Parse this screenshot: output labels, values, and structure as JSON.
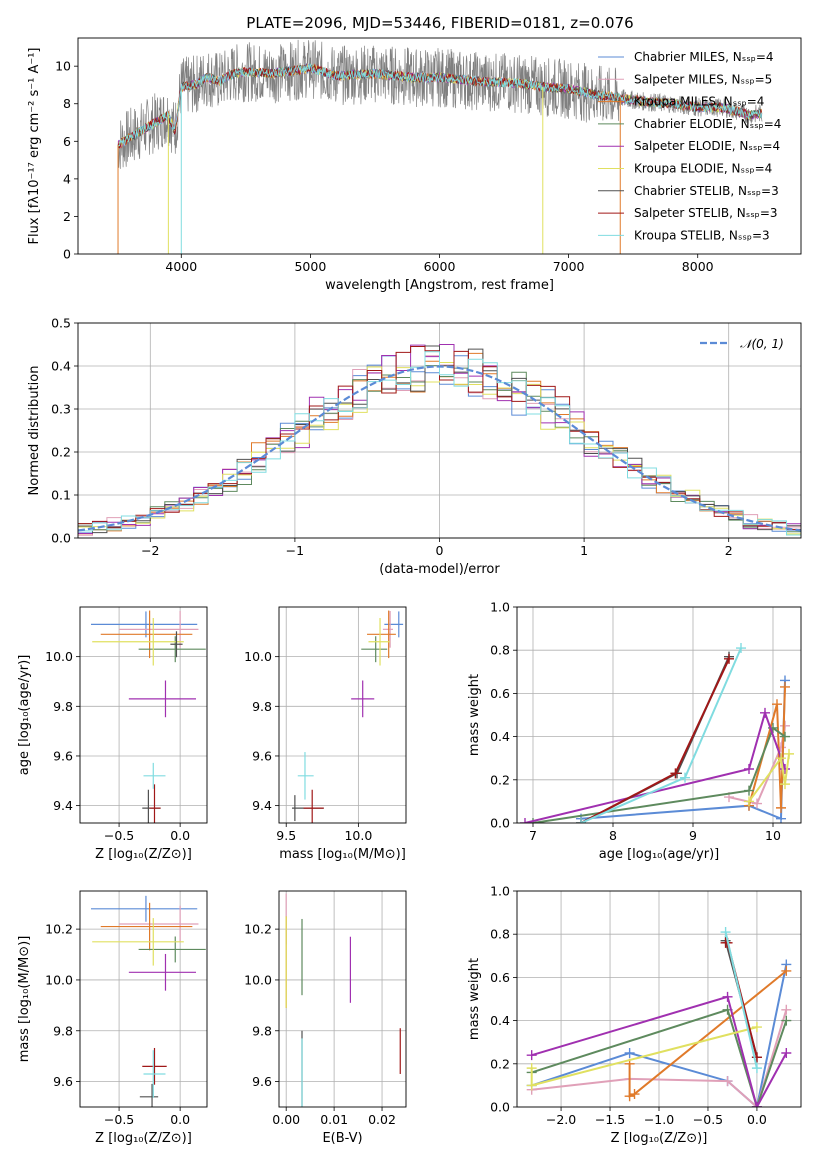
{
  "chart_data": [
    {
      "id": "spectrum",
      "type": "line",
      "title": "PLATE=2096, MJD=53446, FIBERID=0181, z=0.076",
      "xlabel": "wavelength [Angstrom, rest frame]",
      "ylabel": "Flux [fλ10⁻¹⁷ erg cm⁻² s⁻¹ A⁻¹]",
      "xlim": [
        3200,
        8800
      ],
      "ylim": [
        0,
        11.5
      ],
      "xticks": [
        4000,
        5000,
        6000,
        7000,
        8000
      ],
      "yticks": [
        0,
        2,
        4,
        6,
        8,
        10
      ],
      "legend_position": "top-right",
      "continuum": {
        "x": [
          3510,
          3600,
          3700,
          3800,
          3900,
          3950,
          4000,
          4100,
          4200,
          4300,
          4400,
          4500,
          4700,
          5000,
          5200,
          5500,
          5800,
          6000,
          6300,
          6600,
          6800,
          7000,
          7200,
          7400,
          7600,
          7800,
          8000,
          8200,
          8400,
          8500
        ],
        "y": [
          5.8,
          6.2,
          6.6,
          7.0,
          7.4,
          6.5,
          8.9,
          9.0,
          9.4,
          9.2,
          9.6,
          9.7,
          9.6,
          9.9,
          9.5,
          9.6,
          9.4,
          9.4,
          9.2,
          9.1,
          8.9,
          8.8,
          8.5,
          8.3,
          8.1,
          8.0,
          7.8,
          7.8,
          7.4,
          7.5
        ]
      },
      "series": [
        {
          "name": "Chabrier MILES, Nₛₛₚ=4",
          "color": "#5b8bd6"
        },
        {
          "name": "Salpeter MILES, Nₛₛₚ=5",
          "color": "#e0a0b8"
        },
        {
          "name": "Kroupa MILES, Nₛₛₚ=4",
          "color": "#e07a2a"
        },
        {
          "name": "Chabrier ELODIE, Nₛₛₚ=4",
          "color": "#5e8a5e"
        },
        {
          "name": "Salpeter ELODIE, Nₛₛₚ=4",
          "color": "#a030b0"
        },
        {
          "name": "Kroupa ELODIE, Nₛₛₚ=4",
          "color": "#e0e060"
        },
        {
          "name": "Chabrier STELIB, Nₛₛₚ=3",
          "color": "#505050"
        },
        {
          "name": "Salpeter STELIB, Nₛₛₚ=3",
          "color": "#a01818"
        },
        {
          "name": "Kroupa STELIB, Nₛₛₚ=3",
          "color": "#80dce0"
        }
      ]
    },
    {
      "id": "residuals",
      "type": "histogram",
      "xlabel": "(data-model)/error",
      "ylabel": "Normed distribution",
      "xlim": [
        -2.5,
        2.5
      ],
      "ylim": [
        0,
        0.5
      ],
      "xticks": [
        -2,
        -1,
        0,
        1,
        2
      ],
      "yticks": [
        0.0,
        0.1,
        0.2,
        0.3,
        0.4,
        0.5
      ],
      "legend": "𝒩(0, 1)",
      "legend_position": "top-right",
      "gaussian_color": "#5b8bd6",
      "bin_width": 0.1,
      "bin_start": -2.5
    },
    {
      "id": "age_vs_Z",
      "type": "errorbar",
      "xlabel": "Z [log₁₀(Z/Z⊙)]",
      "ylabel": "age  [log₁₀(age/yr)]",
      "xlim": [
        -0.82,
        0.22
      ],
      "ylim": [
        9.33,
        10.2
      ],
      "xticks": [
        -0.5,
        0.0
      ],
      "yticks": [
        9.4,
        9.6,
        9.8,
        10.0
      ],
      "points": [
        {
          "x": -0.28,
          "xe": [
            0.45,
            0.42
          ],
          "y": 10.13,
          "color": "#5b8bd6"
        },
        {
          "x": 0.0,
          "xe": [
            0.5,
            0.15
          ],
          "y": 10.11,
          "color": "#e0a0b8"
        },
        {
          "x": -0.25,
          "xe": [
            0.4,
            0.35
          ],
          "y": 10.09,
          "color": "#e07a2a"
        },
        {
          "x": -0.04,
          "xe": [
            0.3,
            0.25
          ],
          "y": 10.03,
          "color": "#5e8a5e"
        },
        {
          "x": -0.12,
          "xe": [
            0.3,
            0.25
          ],
          "y": 9.83,
          "color": "#a030b0"
        },
        {
          "x": -0.22,
          "xe": [
            0.5,
            0.25
          ],
          "y": 10.06,
          "color": "#e0e060"
        },
        {
          "x": -0.03,
          "xe": [
            0.05,
            0.05
          ],
          "y": 10.05,
          "color": "#505050"
        },
        {
          "x": -0.26,
          "xe": [
            0.05,
            0.1
          ],
          "y": 9.39,
          "color": "#505050"
        },
        {
          "x": -0.21,
          "xe": [
            0.04,
            0.05
          ],
          "y": 9.39,
          "color": "#a01818"
        },
        {
          "x": -0.22,
          "xe": [
            0.08,
            0.1
          ],
          "y": 9.52,
          "color": "#80dce0"
        }
      ]
    },
    {
      "id": "age_vs_mass",
      "type": "errorbar",
      "xlabel": "mass [log₁₀(M/M⊙)]",
      "ylabel": "",
      "xlim": [
        9.45,
        10.33
      ],
      "ylim": [
        9.33,
        10.2
      ],
      "xticks": [
        9.5,
        10.0
      ],
      "yticks": [
        9.4,
        9.6,
        9.8,
        10.0
      ],
      "points": [
        {
          "x": 10.28,
          "xe": [
            0.1,
            0.03
          ],
          "y": 10.13,
          "color": "#5b8bd6"
        },
        {
          "x": 10.22,
          "xe": [
            0.05,
            0.02
          ],
          "y": 10.11,
          "color": "#e0a0b8"
        },
        {
          "x": 10.21,
          "xe": [
            0.15,
            0.05
          ],
          "y": 10.09,
          "color": "#e07a2a"
        },
        {
          "x": 10.12,
          "xe": [
            0.1,
            0.08
          ],
          "y": 10.03,
          "color": "#5e8a5e"
        },
        {
          "x": 10.03,
          "xe": [
            0.08,
            0.08
          ],
          "y": 9.83,
          "color": "#a030b0"
        },
        {
          "x": 10.15,
          "xe": [
            0.08,
            0.07
          ],
          "y": 10.06,
          "color": "#e0e060"
        },
        {
          "x": 9.56,
          "xe": [
            0.02,
            0.2
          ],
          "y": 9.39,
          "color": "#505050"
        },
        {
          "x": 9.68,
          "xe": [
            0.06,
            0.08
          ],
          "y": 9.39,
          "color": "#a01818"
        },
        {
          "x": 9.63,
          "xe": [
            0.05,
            0.06
          ],
          "y": 9.52,
          "color": "#80dce0"
        }
      ]
    },
    {
      "id": "weight_vs_age",
      "type": "line",
      "xlabel": "age  [log₁₀(age/yr)]",
      "ylabel": "mass weight",
      "xlim": [
        6.8,
        10.35
      ],
      "ylim": [
        0,
        1.0
      ],
      "xticks": [
        7,
        8,
        9,
        10
      ],
      "yticks": [
        0.0,
        0.2,
        0.4,
        0.6,
        0.8,
        1.0
      ],
      "series": [
        {
          "color": "#5b8bd6",
          "x": [
            7.6,
            9.7,
            10.1,
            10.15
          ],
          "y": [
            0.02,
            0.08,
            0.02,
            0.66
          ]
        },
        {
          "color": "#e0a0b8",
          "x": [
            9.45,
            9.8,
            10.1,
            10.15
          ],
          "y": [
            0.12,
            0.09,
            0.35,
            0.45
          ]
        },
        {
          "color": "#e07a2a",
          "x": [
            9.7,
            10.05,
            10.1,
            10.15
          ],
          "y": [
            0.08,
            0.55,
            0.07,
            0.63
          ]
        },
        {
          "color": "#5e8a5e",
          "x": [
            7.0,
            9.7,
            10.0,
            10.15
          ],
          "y": [
            0.0,
            0.15,
            0.44,
            0.4
          ]
        },
        {
          "color": "#a030b0",
          "x": [
            6.9,
            9.7,
            9.9,
            10.15
          ],
          "y": [
            0.0,
            0.25,
            0.51,
            0.25
          ]
        },
        {
          "color": "#e0e060",
          "x": [
            9.7,
            10.1,
            10.15,
            10.2
          ],
          "y": [
            0.1,
            0.3,
            0.18,
            0.32
          ]
        },
        {
          "color": "#505050",
          "x": [
            7.6,
            8.8,
            9.45
          ],
          "y": [
            0.0,
            0.23,
            0.77
          ]
        },
        {
          "color": "#a01818",
          "x": [
            7.6,
            8.78,
            9.45
          ],
          "y": [
            0.0,
            0.23,
            0.76
          ]
        },
        {
          "color": "#80dce0",
          "x": [
            7.6,
            8.9,
            9.6
          ],
          "y": [
            0.0,
            0.21,
            0.81
          ]
        }
      ]
    },
    {
      "id": "mass_vs_Z",
      "type": "errorbar",
      "xlabel": "Z [log₁₀(Z/Z⊙)]",
      "ylabel": "mass [log₁₀(M/M⊙)]",
      "xlim": [
        -0.82,
        0.22
      ],
      "ylim": [
        9.5,
        10.35
      ],
      "xticks": [
        -0.5,
        0.0
      ],
      "yticks": [
        9.6,
        9.8,
        10.0,
        10.2
      ],
      "points": [
        {
          "x": -0.28,
          "xe": [
            0.45,
            0.42
          ],
          "y": 10.28,
          "color": "#5b8bd6"
        },
        {
          "x": 0.0,
          "xe": [
            0.5,
            0.15
          ],
          "y": 10.22,
          "color": "#e0a0b8"
        },
        {
          "x": -0.25,
          "xe": [
            0.4,
            0.35
          ],
          "y": 10.21,
          "color": "#e07a2a"
        },
        {
          "x": -0.04,
          "xe": [
            0.3,
            0.25
          ],
          "y": 10.12,
          "color": "#5e8a5e"
        },
        {
          "x": -0.12,
          "xe": [
            0.3,
            0.25
          ],
          "y": 10.03,
          "color": "#a030b0"
        },
        {
          "x": -0.22,
          "xe": [
            0.5,
            0.25
          ],
          "y": 10.15,
          "color": "#e0e060"
        },
        {
          "x": -0.23,
          "xe": [
            0.1,
            0.05
          ],
          "y": 9.54,
          "color": "#505050"
        },
        {
          "x": -0.21,
          "xe": [
            0.1,
            0.1
          ],
          "y": 9.66,
          "color": "#a01818"
        },
        {
          "x": -0.22,
          "xe": [
            0.08,
            0.1
          ],
          "y": 9.63,
          "color": "#80dce0"
        }
      ]
    },
    {
      "id": "mass_vs_ebv",
      "type": "errorbar",
      "xlabel": "E(B-V)",
      "ylabel": "",
      "xlim": [
        -0.0015,
        0.025
      ],
      "ylim": [
        9.5,
        10.35
      ],
      "xticks": [
        0.0,
        0.01,
        0.02
      ],
      "yticks": [
        9.6,
        9.8,
        10.0,
        10.2
      ],
      "points": [
        {
          "x": 0.0,
          "ye": [
            0.12,
            0.08
          ],
          "y": 10.26,
          "color": "#e0a0b8"
        },
        {
          "x": 0.0,
          "ye": [
            0.18,
            0.18
          ],
          "y": 10.07,
          "color": "#e07a2a"
        },
        {
          "x": 0.0,
          "ye": [
            0.18,
            0.18
          ],
          "y": 10.07,
          "color": "#e0e060"
        },
        {
          "x": 0.0033,
          "ye": [
            0.15,
            0.15
          ],
          "y": 10.09,
          "color": "#5e8a5e"
        },
        {
          "x": 0.0134,
          "ye": [
            0.13,
            0.13
          ],
          "y": 10.04,
          "color": "#a030b0"
        },
        {
          "x": 0.0033,
          "ye": [
            0.2,
            0.2
          ],
          "y": 9.6,
          "color": "#505050"
        },
        {
          "x": 0.0033,
          "ye": [
            0.16,
            0.16
          ],
          "y": 9.61,
          "color": "#80dce0"
        },
        {
          "x": 0.0238,
          "ye": [
            0.09,
            0.09
          ],
          "y": 9.72,
          "color": "#a01818"
        }
      ]
    },
    {
      "id": "weight_vs_Z",
      "type": "line",
      "xlabel": "Z [log₁₀(Z/Z⊙)]",
      "ylabel": "mass weight",
      "xlim": [
        -2.45,
        0.45
      ],
      "ylim": [
        0,
        1.0
      ],
      "xticks": [
        -2.0,
        -1.5,
        -1.0,
        -0.5,
        0.0
      ],
      "yticks": [
        0.0,
        0.2,
        0.4,
        0.6,
        0.8,
        1.0
      ],
      "series": [
        {
          "color": "#5b8bd6",
          "x": [
            -2.3,
            -1.3,
            -0.3,
            0.0,
            0.3
          ],
          "y": [
            0.1,
            0.25,
            0.12,
            0.0,
            0.66
          ]
        },
        {
          "color": "#e0a0b8",
          "x": [
            -2.3,
            -1.3,
            -0.3,
            0.0,
            0.3
          ],
          "y": [
            0.08,
            0.13,
            0.12,
            0.0,
            0.45
          ]
        },
        {
          "color": "#e07a2a",
          "x": [
            -1.3,
            -1.3,
            -1.25,
            0.3
          ],
          "y": [
            0.2,
            0.05,
            0.06,
            0.63
          ]
        },
        {
          "color": "#5e8a5e",
          "x": [
            -2.3,
            -0.3,
            0.0,
            0.3
          ],
          "y": [
            0.16,
            0.45,
            0.0,
            0.4
          ]
        },
        {
          "color": "#a030b0",
          "x": [
            -2.3,
            -0.3,
            0.0,
            0.3
          ],
          "y": [
            0.24,
            0.51,
            0.0,
            0.25
          ]
        },
        {
          "color": "#e0e060",
          "x": [
            -2.3,
            -2.3,
            0.0
          ],
          "y": [
            0.18,
            0.1,
            0.37
          ]
        },
        {
          "color": "#505050",
          "x": [
            -0.32,
            0.0
          ],
          "y": [
            0.77,
            0.23
          ]
        },
        {
          "color": "#a01818",
          "x": [
            -0.32,
            -0.3,
            0.0
          ],
          "y": [
            0.76,
            0.76,
            0.23
          ]
        },
        {
          "color": "#80dce0",
          "x": [
            -0.32,
            0.0
          ],
          "y": [
            0.81,
            0.18
          ]
        }
      ]
    }
  ]
}
